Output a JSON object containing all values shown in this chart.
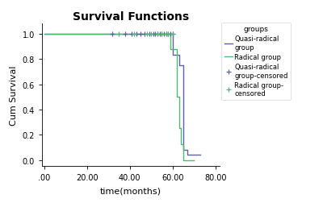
{
  "title": "Survival Functions",
  "xlabel": "time(months)",
  "ylabel": "Cum Survival",
  "legend_title": "groups",
  "xlim": [
    -1,
    82
  ],
  "ylim": [
    -0.05,
    1.08
  ],
  "xticks": [
    0,
    20,
    40,
    60,
    80
  ],
  "xtick_labels": [
    ".00",
    "20.00",
    "40.00",
    "60.00",
    "80.00"
  ],
  "yticks": [
    0.0,
    0.2,
    0.4,
    0.6,
    0.8,
    1.0
  ],
  "ytick_labels": [
    "0.0",
    "0.2",
    "0.4",
    "0.6",
    "0.8",
    "1.0"
  ],
  "plot_bg_color": "#ffffff",
  "fig_bg_color": "#ffffff",
  "quasi_radical_color": "#6060a0",
  "radical_color": "#50b87a",
  "quasi_radical_step_x": [
    0,
    60,
    60,
    63,
    63,
    65,
    65,
    67,
    67,
    73
  ],
  "quasi_radical_step_y": [
    1.0,
    1.0,
    0.833,
    0.833,
    0.75,
    0.75,
    0.083,
    0.083,
    0.042,
    0.042
  ],
  "radical_step_x": [
    0,
    59,
    59,
    62,
    62,
    63,
    63,
    64,
    64,
    65,
    65,
    70
  ],
  "radical_step_y": [
    1.0,
    1.0,
    0.875,
    0.875,
    0.5,
    0.5,
    0.25,
    0.25,
    0.125,
    0.125,
    0.0,
    0.0
  ],
  "quasi_censored_x": [
    32,
    38,
    41,
    43,
    45,
    47,
    49,
    51,
    52,
    53,
    54,
    55,
    56,
    57,
    58,
    59,
    60
  ],
  "quasi_censored_y": [
    1.0,
    1.0,
    1.0,
    1.0,
    1.0,
    1.0,
    1.0,
    1.0,
    1.0,
    1.0,
    1.0,
    1.0,
    1.0,
    1.0,
    1.0,
    1.0,
    1.0
  ],
  "radical_censored_x": [
    35,
    42,
    48,
    50,
    53,
    55,
    57,
    58,
    60
  ],
  "radical_censored_y": [
    1.0,
    1.0,
    1.0,
    1.0,
    1.0,
    1.0,
    1.0,
    1.0,
    1.0
  ],
  "legend_entries": [
    "Quasi-radical\ngroup",
    "Radical group",
    "Quasi-radical\ngroup-censored",
    "Radical group-\ncensored"
  ],
  "figsize": [
    4.0,
    2.53
  ],
  "dpi": 100
}
